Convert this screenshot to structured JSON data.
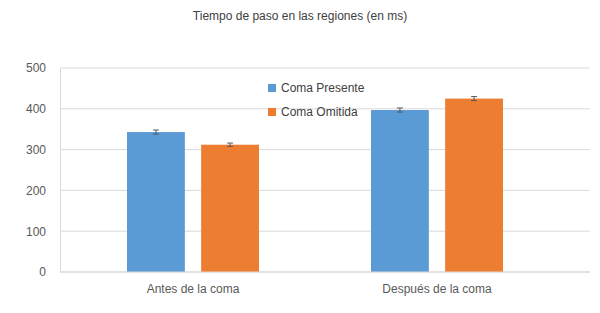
{
  "chart_data": {
    "type": "bar",
    "title": "Tiempo de paso en las regiones (en ms)",
    "categories": [
      "Antes de la coma",
      "Después de la coma"
    ],
    "series": [
      {
        "name": "Coma Presente",
        "color": "#5b9bd5",
        "values": [
          343,
          397
        ],
        "errors": [
          5,
          5
        ]
      },
      {
        "name": "Coma Omitida",
        "color": "#ed7d31",
        "values": [
          312,
          425
        ],
        "errors": [
          4,
          5
        ]
      }
    ],
    "ylim": [
      0,
      500
    ],
    "yticks": [
      0,
      100,
      200,
      300,
      400,
      500
    ],
    "grid": true,
    "legend": "top"
  }
}
